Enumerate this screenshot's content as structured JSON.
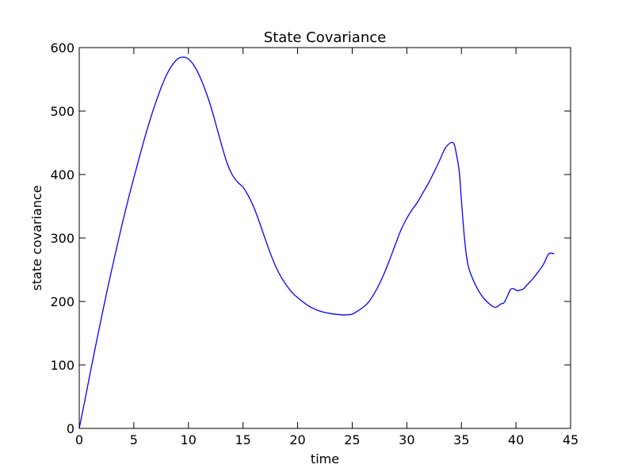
{
  "chart_data": {
    "type": "line",
    "title": "State Covariance",
    "xlabel": "time",
    "ylabel": "state covariance",
    "xlim": [
      0,
      45
    ],
    "ylim": [
      0,
      600
    ],
    "xticks": [
      0,
      5,
      10,
      15,
      20,
      25,
      30,
      35,
      40,
      45
    ],
    "yticks": [
      0,
      100,
      200,
      300,
      400,
      500,
      600
    ],
    "grid": false,
    "line_color": "#0000ff",
    "series": [
      {
        "x": [
          0,
          0.5,
          1,
          1.5,
          2,
          2.5,
          3,
          3.5,
          4,
          4.5,
          5,
          5.5,
          6,
          6.5,
          7,
          7.5,
          8,
          8.5,
          9,
          9.5,
          10,
          10.5,
          11,
          11.5,
          12,
          12.5,
          13,
          13.5,
          14,
          14.5,
          15,
          15.5,
          16,
          16.5,
          17,
          17.5,
          18,
          18.5,
          19,
          19.5,
          20,
          21,
          22,
          23,
          24,
          24.5,
          25,
          25.5,
          26,
          26.5,
          27,
          27.5,
          28,
          28.5,
          29,
          29.5,
          30,
          30.5,
          31,
          31.5,
          32,
          32.5,
          33,
          33.5,
          34,
          34.3,
          34.5,
          34.8,
          35,
          35.3,
          35.6,
          36,
          36.5,
          37,
          37.5,
          38,
          38.3,
          38.6,
          38.9,
          39.2,
          39.5,
          39.8,
          40.1,
          40.4,
          40.7,
          41,
          41.5,
          42,
          42.5,
          43,
          43.5
        ],
        "y": [
          0,
          43,
          87,
          130,
          172,
          213,
          252,
          290,
          327,
          362,
          395,
          427,
          458,
          487,
          513,
          537,
          557,
          572,
          582,
          585,
          582,
          572,
          556,
          535,
          510,
          480,
          449,
          420,
          400,
          388,
          380,
          366,
          348,
          325,
          300,
          276,
          255,
          238,
          225,
          214,
          206,
          193,
          185,
          181,
          179,
          179,
          180,
          185,
          191,
          199,
          212,
          228,
          247,
          269,
          292,
          314,
          331,
          345,
          357,
          372,
          387,
          404,
          422,
          441,
          450,
          449,
          436,
          405,
          360,
          296,
          258,
          237,
          219,
          206,
          197,
          191,
          192,
          196,
          198,
          208,
          219,
          220,
          217,
          218,
          220,
          226,
          235,
          246,
          258,
          275,
          275
        ]
      }
    ]
  }
}
